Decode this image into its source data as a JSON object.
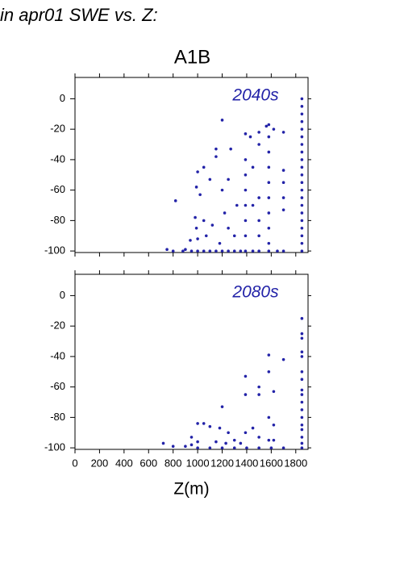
{
  "header": {
    "title": "in apr01 SWE vs. Z:"
  },
  "chart_data": [
    {
      "type": "scatter",
      "title": "A1B",
      "annotation": "2040s",
      "color": "#2323a8",
      "xlim": [
        0,
        1900
      ],
      "xticks": [
        0,
        200,
        400,
        600,
        800,
        1000,
        1200,
        1400,
        1600,
        1800
      ],
      "ylim": [
        -101,
        14
      ],
      "yticks": [
        0,
        -20,
        -40,
        -60,
        -80,
        -100
      ],
      "x": [
        1850,
        1850,
        1850,
        1850,
        1850,
        1850,
        1850,
        1850,
        1850,
        1850,
        1850,
        1850,
        1850,
        1850,
        1850,
        1850,
        1850,
        1850,
        1850,
        1850,
        1850,
        1580,
        1580,
        1580,
        1580,
        1580,
        1580,
        1580,
        1580,
        1580,
        1580,
        1390,
        1390,
        1390,
        1390,
        1390,
        1390,
        1390,
        1390,
        1700,
        1700,
        1700,
        1700,
        1700,
        1700,
        1500,
        1500,
        1500,
        1500,
        1500,
        1500,
        1200,
        1150,
        1150,
        1270,
        1250,
        1050,
        1000,
        990,
        820,
        1100,
        1020,
        1050,
        1200,
        1220,
        1120,
        980,
        990,
        1000,
        940,
        900,
        750,
        800,
        880,
        950,
        1000,
        1050,
        1100,
        1150,
        1200,
        1250,
        1300,
        1350,
        1450,
        1650,
        1300,
        1250,
        1320,
        1450,
        1620,
        1450,
        1560,
        1070,
        1180,
        1430
      ],
      "values": [
        0,
        -5,
        -10,
        -15,
        -20,
        -25,
        -30,
        -35,
        -40,
        -45,
        -50,
        -55,
        -60,
        -65,
        -70,
        -75,
        -80,
        -85,
        -90,
        -95,
        -100,
        -17,
        -25,
        -35,
        -45,
        -55,
        -65,
        -75,
        -85,
        -95,
        -100,
        -23,
        -40,
        -50,
        -60,
        -70,
        -80,
        -90,
        -100,
        -22,
        -47,
        -55,
        -65,
        -73,
        -100,
        -22,
        -30,
        -65,
        -80,
        -90,
        -100,
        -14,
        -33,
        -38,
        -33,
        -53,
        -45,
        -48,
        -58,
        -67,
        -53,
        -63,
        -80,
        -60,
        -75,
        -83,
        -78,
        -85,
        -92,
        -93,
        -99,
        -99,
        -100,
        -100,
        -100,
        -100,
        -100,
        -100,
        -100,
        -100,
        -100,
        -100,
        -100,
        -100,
        -100,
        -90,
        -85,
        -70,
        -70,
        -20,
        -45,
        -18,
        -90,
        -95,
        -25
      ]
    },
    {
      "type": "scatter",
      "annotation": "2080s",
      "xlabel": "Z(m)",
      "color": "#2323a8",
      "xlim": [
        0,
        1900
      ],
      "xticks": [
        0,
        200,
        400,
        600,
        800,
        1000,
        1200,
        1400,
        1600,
        1800
      ],
      "ylim": [
        -101,
        14
      ],
      "yticks": [
        0,
        -20,
        -40,
        -60,
        -80,
        -100
      ],
      "x": [
        1850,
        1850,
        1850,
        1850,
        1850,
        1850,
        1850,
        1850,
        1850,
        1850,
        1850,
        1850,
        1850,
        1850,
        1850,
        1850,
        1850,
        1700,
        1580,
        1580,
        1390,
        1390,
        1500,
        1500,
        1620,
        1620,
        1620,
        1200,
        1450,
        1390,
        1500,
        1580,
        1580,
        1000,
        1050,
        1100,
        1180,
        1250,
        1300,
        950,
        950,
        1000,
        720,
        800,
        900,
        1000,
        1100,
        1200,
        1300,
        1400,
        1500,
        1600,
        1700,
        1150,
        1230,
        1350
      ],
      "values": [
        -15,
        -25,
        -28,
        -37,
        -40,
        -50,
        -55,
        -62,
        -65,
        -70,
        -75,
        -80,
        -85,
        -88,
        -93,
        -97,
        -100,
        -42,
        -39,
        -50,
        -53,
        -65,
        -60,
        -65,
        -63,
        -85,
        -95,
        -73,
        -87,
        -90,
        -93,
        -80,
        -95,
        -84,
        -84,
        -86,
        -87,
        -90,
        -95,
        -93,
        -98,
        -96,
        -97,
        -99,
        -99,
        -100,
        -100,
        -100,
        -100,
        -100,
        -100,
        -100,
        -100,
        -96,
        -97,
        -97
      ]
    }
  ]
}
